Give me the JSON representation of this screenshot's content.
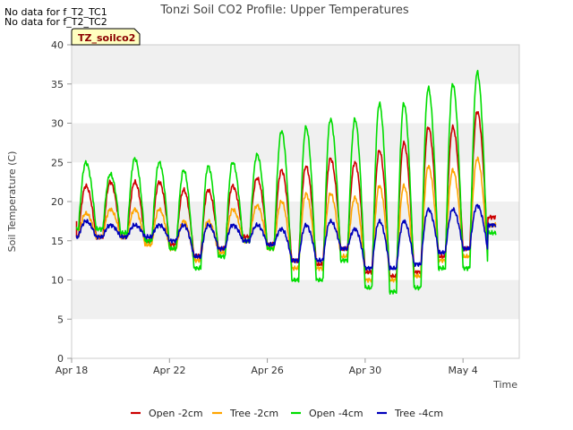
{
  "notices": [
    "No data for f_T2_TC1",
    "No data for f_T2_TC2"
  ],
  "tag_label": "TZ_soilco2",
  "colors": {
    "open_2cm": "#cc0000",
    "tree_2cm": "#ffa500",
    "open_4cm": "#00dd00",
    "tree_4cm": "#0000bb",
    "band": "#f0f0f0",
    "tag_bg": "#ffffc0"
  },
  "chart_data": {
    "type": "line",
    "title": "Tonzi Soil CO2 Profile: Upper Temperatures",
    "xlabel": "Time",
    "ylabel": "Soil Temperature (C)",
    "x_domain_days": [
      0,
      18.3
    ],
    "x_ticks": [
      {
        "label": "Apr 18",
        "day": 0
      },
      {
        "label": "Apr 22",
        "day": 4
      },
      {
        "label": "Apr 26",
        "day": 8
      },
      {
        "label": "Apr 30",
        "day": 12
      },
      {
        "label": "May 4",
        "day": 16
      }
    ],
    "ylim": [
      0,
      40
    ],
    "y_ticks": [
      0,
      5,
      10,
      15,
      20,
      25,
      30,
      35,
      40
    ],
    "grid": "horizontal bands",
    "legend_position": "bottom",
    "start_day": 0.2,
    "series": [
      {
        "name": "Open -2cm",
        "color_key": "open_2cm",
        "peaks": [
          22.0,
          22.5,
          22.5,
          22.5,
          21.5,
          21.5,
          22.0,
          23.0,
          24.0,
          24.5,
          25.5,
          25.0,
          26.5,
          27.5,
          29.5,
          29.5,
          31.5
        ],
        "troughs": [
          15.5,
          15.5,
          15.0,
          14.5,
          13.0,
          14.0,
          15.5,
          14.5,
          12.5,
          12.0,
          14.0,
          11.0,
          10.5,
          11.0,
          13.0,
          14.0,
          14.0
        ],
        "end": 18.0
      },
      {
        "name": "Tree -2cm",
        "color_key": "tree_2cm",
        "peaks": [
          18.5,
          19.0,
          19.0,
          19.0,
          17.5,
          17.5,
          19.0,
          19.5,
          20.0,
          21.0,
          21.0,
          20.5,
          22.0,
          22.0,
          24.5,
          24.0,
          25.5
        ],
        "troughs": [
          15.5,
          15.5,
          14.5,
          14.0,
          12.5,
          13.5,
          15.0,
          14.0,
          11.5,
          11.5,
          13.0,
          10.0,
          10.0,
          10.5,
          12.5,
          13.0,
          13.0
        ],
        "end": 17.0
      },
      {
        "name": "Open -4cm",
        "color_key": "open_4cm",
        "peaks": [
          25.0,
          23.5,
          25.5,
          25.0,
          24.0,
          24.5,
          25.0,
          26.0,
          29.0,
          29.5,
          30.5,
          30.5,
          32.5,
          32.5,
          34.5,
          35.0,
          36.5
        ],
        "troughs": [
          16.5,
          16.0,
          15.0,
          14.0,
          11.5,
          13.0,
          15.0,
          14.0,
          10.0,
          10.0,
          12.5,
          9.0,
          8.5,
          9.0,
          11.5,
          11.5,
          12.5
        ],
        "end": 16.0
      },
      {
        "name": "Tree -4cm",
        "color_key": "tree_4cm",
        "peaks": [
          17.5,
          17.0,
          17.0,
          17.0,
          17.0,
          17.0,
          17.0,
          17.0,
          16.5,
          17.0,
          17.5,
          16.5,
          17.5,
          17.5,
          19.0,
          19.0,
          19.5
        ],
        "troughs": [
          15.5,
          15.5,
          15.5,
          15.0,
          13.0,
          14.0,
          15.0,
          14.5,
          12.5,
          12.5,
          14.0,
          11.5,
          11.5,
          12.0,
          13.5,
          14.0,
          14.0
        ],
        "end": 17.0
      }
    ]
  }
}
